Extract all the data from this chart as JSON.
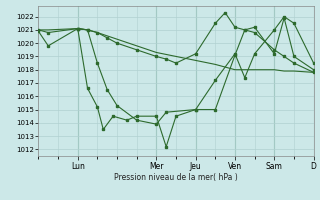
{
  "background_color": "#cce8e8",
  "grid_color": "#b0d0d0",
  "line_color": "#2d6a2d",
  "xlabel": "Pression niveau de la mer( hPa )",
  "ylim": [
    1011.5,
    1022.8
  ],
  "yticks": [
    1012,
    1013,
    1014,
    1015,
    1016,
    1017,
    1018,
    1019,
    1020,
    1021,
    1022
  ],
  "day_labels": [
    "Lun",
    "Mer",
    "Jeu",
    "Ven",
    "Sam",
    "D"
  ],
  "day_positions": [
    2,
    6,
    8,
    10,
    12,
    14
  ],
  "xlim": [
    0,
    14
  ],
  "series1_x": [
    0,
    0.5,
    2,
    2.5,
    3,
    3.5,
    4,
    5,
    6,
    6.5,
    7,
    8,
    9,
    9.5,
    10,
    10.5,
    11,
    12,
    12.5,
    13,
    14
  ],
  "series1_y": [
    1020.9,
    1019.8,
    1021.1,
    1021.0,
    1020.8,
    1020.4,
    1020.0,
    1019.5,
    1019.0,
    1018.8,
    1018.5,
    1019.2,
    1021.5,
    1022.3,
    1021.2,
    1021.0,
    1020.8,
    1019.5,
    1019.0,
    1018.5,
    1017.8
  ],
  "series2_x": [
    0,
    0.5,
    2,
    2.5,
    3,
    4,
    5,
    6,
    7,
    8,
    9,
    10,
    11,
    12,
    12.5,
    13,
    14
  ],
  "series2_y": [
    1021.0,
    1021.0,
    1021.1,
    1021.0,
    1020.8,
    1020.3,
    1019.8,
    1019.3,
    1019.0,
    1018.7,
    1018.4,
    1018.0,
    1018.0,
    1018.0,
    1017.9,
    1017.9,
    1017.8
  ],
  "series3_x": [
    0,
    0.5,
    2,
    2.5,
    3,
    3.5,
    4,
    5,
    6,
    6.5,
    8,
    9,
    10,
    10.5,
    11,
    12,
    12.5,
    13,
    14
  ],
  "series3_y": [
    1021.0,
    1020.8,
    1021.1,
    1021.0,
    1018.5,
    1016.5,
    1015.3,
    1014.2,
    1013.9,
    1014.8,
    1015.0,
    1017.2,
    1019.2,
    1017.4,
    1019.2,
    1021.0,
    1022.0,
    1021.5,
    1018.5
  ],
  "series4_x": [
    2,
    2.5,
    3,
    3.3,
    3.8,
    4.5,
    5,
    6,
    6.5,
    7,
    8,
    9,
    10,
    10.5,
    11,
    12,
    12.5,
    13,
    14
  ],
  "series4_y": [
    1021.1,
    1016.6,
    1015.2,
    1013.5,
    1014.5,
    1014.2,
    1014.5,
    1014.5,
    1012.2,
    1014.5,
    1015.0,
    1015.0,
    1019.1,
    1021.0,
    1021.2,
    1019.2,
    1021.9,
    1019.0,
    1018.0
  ]
}
